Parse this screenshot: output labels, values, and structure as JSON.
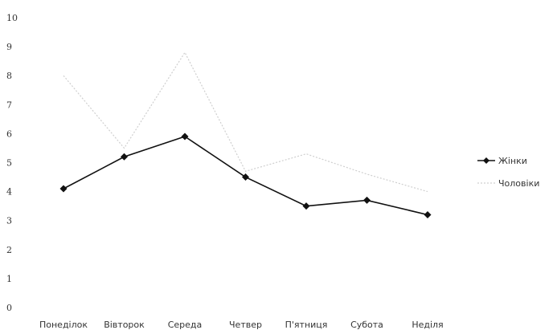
{
  "chart_data": {
    "type": "line",
    "categories": [
      "Понеділок",
      "Вівторок",
      "Середа",
      "Четвер",
      "П'ятниця",
      "Субота",
      "Неділя"
    ],
    "series": [
      {
        "name": "Жінки",
        "values": [
          4.1,
          5.2,
          5.9,
          4.5,
          3.5,
          3.7,
          3.2
        ],
        "color": "#111111",
        "marker": "diamond"
      },
      {
        "name": "Чоловіки",
        "values": [
          8.0,
          5.5,
          8.8,
          4.7,
          5.3,
          4.6,
          4.0
        ],
        "color": "#cfcfcf",
        "marker": "none"
      }
    ],
    "yticks": [
      "0",
      "1",
      "2",
      "3",
      "4",
      "5",
      "6",
      "7",
      "8",
      "9",
      "10"
    ],
    "ylim": [
      0,
      10
    ],
    "title": "",
    "xlabel": "",
    "ylabel": "",
    "grid": false,
    "legend_position": "right"
  }
}
